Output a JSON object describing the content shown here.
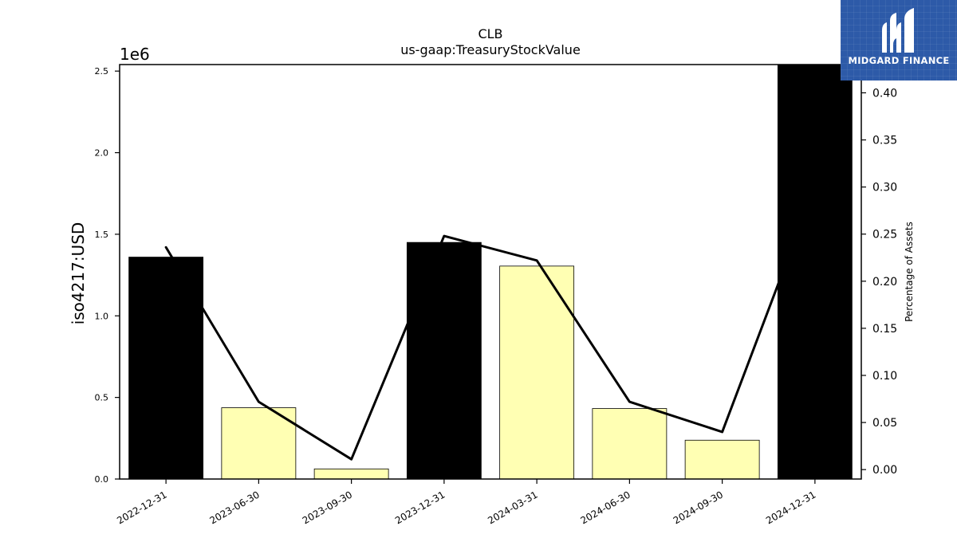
{
  "chart_data": {
    "type": "bar",
    "title": "CLB",
    "subtitle": "us-gaap:TreasuryStockValue",
    "ylabel": "iso4217:USD",
    "y2label": "Percentage of Assets",
    "offset_label": "1e6",
    "categories": [
      "2022-12-31",
      "2023-06-30",
      "2023-09-30",
      "2023-12-31",
      "2024-03-31",
      "2024-06-30",
      "2024-09-30",
      "2024-12-31"
    ],
    "series": [
      {
        "type": "bar",
        "axis": "left",
        "values": [
          1360000,
          437000,
          62000,
          1450000,
          1305000,
          432000,
          238000,
          2540000
        ],
        "colors": [
          "#000000",
          "#ffffb3",
          "#ffffb3",
          "#000000",
          "#ffffb3",
          "#ffffb3",
          "#ffffb3",
          "#000000"
        ]
      },
      {
        "type": "line",
        "axis": "right",
        "color": "#000000",
        "values": [
          0.236,
          0.072,
          0.011,
          0.248,
          0.222,
          0.072,
          0.04,
          0.3
        ]
      }
    ],
    "ylim": [
      0,
      2540000
    ],
    "y2lim": [
      -0.01,
      0.43
    ],
    "yticks": [
      0,
      500000,
      1000000,
      1500000,
      2000000,
      2500000
    ],
    "ytick_labels": [
      "0.0",
      "0.5",
      "1.0",
      "1.5",
      "2.0",
      "2.5"
    ],
    "y2ticks": [
      0,
      0.05,
      0.1,
      0.15,
      0.2,
      0.25,
      0.3,
      0.35,
      0.4
    ],
    "y2tick_labels": [
      "0.00",
      "0.05",
      "0.10",
      "0.15",
      "0.20",
      "0.25",
      "0.30",
      "0.35",
      "0.40"
    ],
    "grid": false,
    "legend": "none"
  },
  "logo": {
    "text": "MIDGARD FINANCE",
    "icon": "midgard-logo-icon"
  }
}
